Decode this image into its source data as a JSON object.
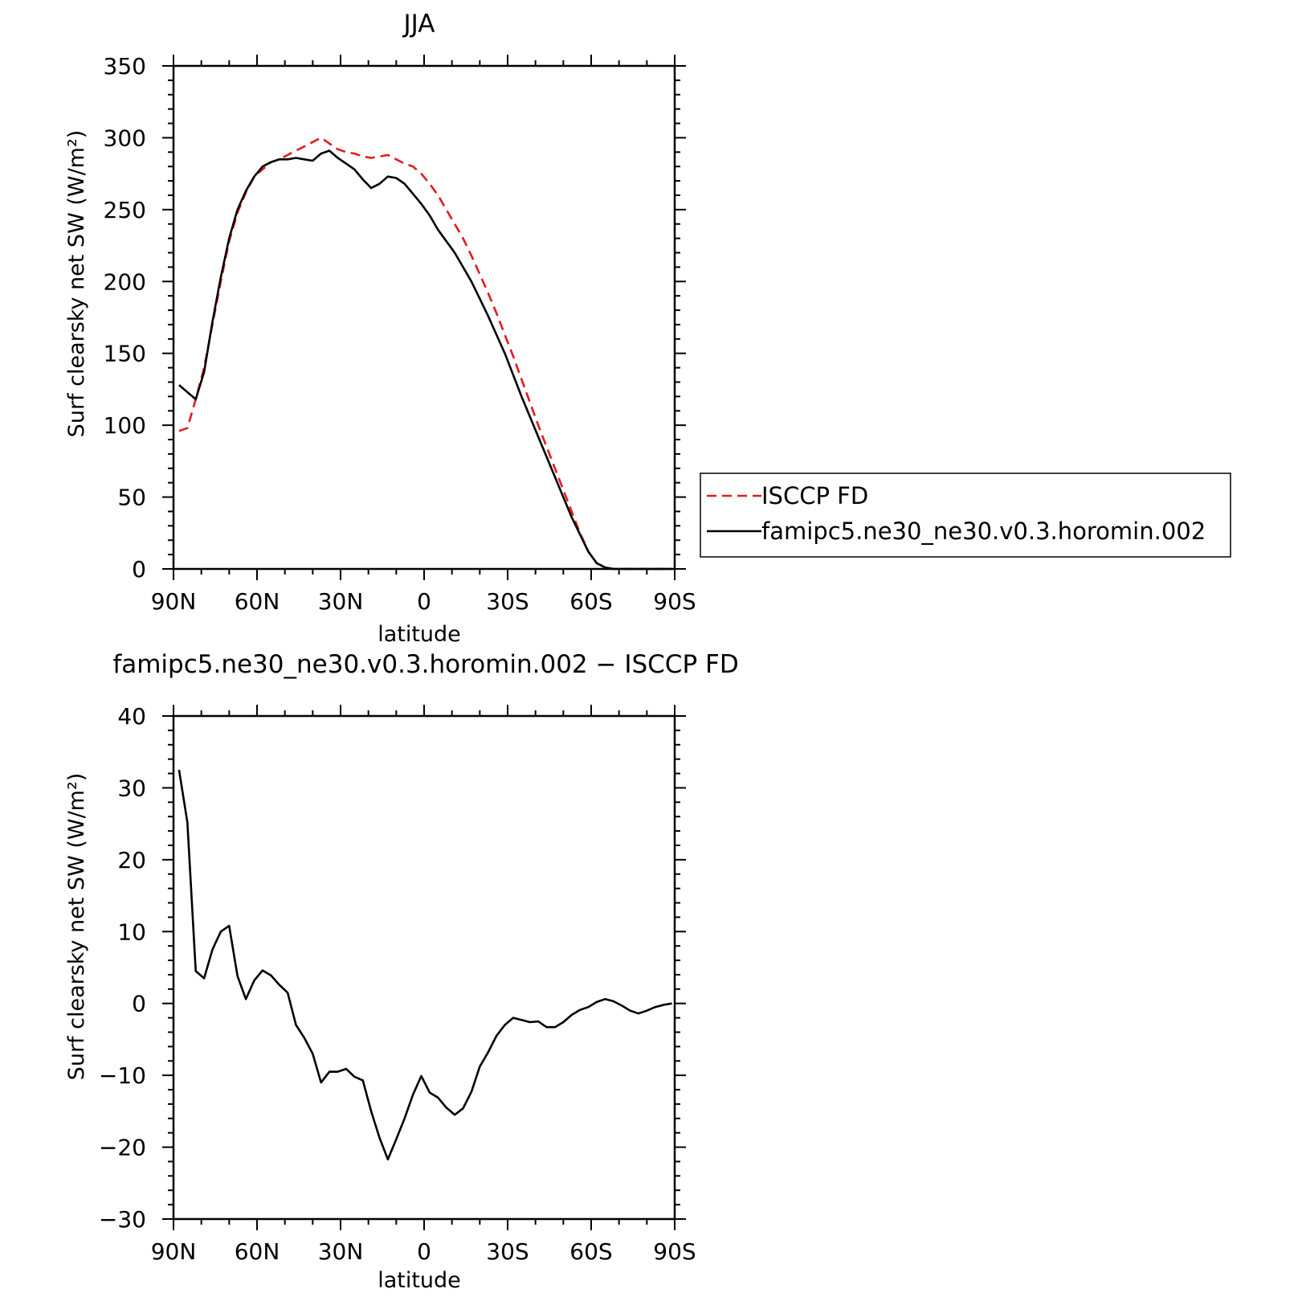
{
  "chart_data": [
    {
      "type": "line",
      "title": "JJA",
      "xlabel": "latitude",
      "ylabel": "Surf clearsky net SW (W/m²)",
      "xlim": [
        90,
        -90
      ],
      "ylim": [
        0,
        350
      ],
      "yticks": [
        0,
        50,
        100,
        150,
        200,
        250,
        300,
        350
      ],
      "xticks": [
        90,
        60,
        30,
        0,
        -30,
        -60,
        -90
      ],
      "xtick_labels": [
        "90N",
        "60N",
        "30N",
        "0",
        "30S",
        "60S",
        "90S"
      ],
      "grid": false,
      "legend": "right, outside",
      "series": [
        {
          "name": "ISCCP FD",
          "color": "#e41a1c",
          "style": "dashed",
          "x": [
            88,
            85,
            82,
            79,
            76,
            73,
            70,
            67,
            64,
            61,
            58,
            55,
            52,
            49,
            46,
            43,
            40,
            37,
            34,
            31,
            28,
            25,
            22,
            19,
            16,
            13,
            10,
            7,
            4,
            1,
            -2,
            -5,
            -8,
            -11,
            -14,
            -17,
            -20,
            -23,
            -26,
            -29,
            -32,
            -35,
            -38,
            -41,
            -44,
            -47,
            -50,
            -53,
            -56,
            -59,
            -62,
            -65,
            -68,
            -71,
            -74,
            -77,
            -80,
            -83,
            -86,
            -89
          ],
          "y": [
            96,
            98,
            118,
            140,
            170,
            200,
            228,
            248,
            262,
            273,
            278,
            283,
            285,
            288,
            291,
            294,
            297,
            300,
            296,
            292,
            290,
            289,
            287,
            286,
            287,
            288,
            285,
            282,
            280,
            275,
            268,
            260,
            250,
            240,
            230,
            218,
            205,
            192,
            178,
            163,
            148,
            132,
            116,
            100,
            85,
            70,
            55,
            40,
            25,
            12,
            4,
            1,
            0,
            0,
            0,
            0,
            0,
            0,
            0,
            0
          ]
        },
        {
          "name": "famipc5.ne30_ne30.v0.3.horomin.002",
          "color": "#000000",
          "style": "solid",
          "x": [
            88,
            85,
            82,
            79,
            76,
            73,
            70,
            67,
            64,
            61,
            58,
            55,
            52,
            49,
            46,
            43,
            40,
            37,
            34,
            31,
            28,
            25,
            22,
            19,
            16,
            13,
            10,
            7,
            4,
            1,
            -2,
            -5,
            -8,
            -11,
            -14,
            -17,
            -20,
            -23,
            -26,
            -29,
            -32,
            -35,
            -38,
            -41,
            -44,
            -47,
            -50,
            -53,
            -56,
            -59,
            -62,
            -65,
            -68,
            -71,
            -74,
            -77,
            -80,
            -83,
            -86,
            -89
          ],
          "y": [
            128,
            123,
            118,
            137,
            172,
            203,
            230,
            250,
            263,
            273,
            280,
            283,
            285,
            285,
            286,
            285,
            284,
            289,
            291,
            286,
            282,
            278,
            271,
            265,
            268,
            273,
            272,
            268,
            261,
            254,
            246,
            236,
            228,
            220,
            210,
            200,
            188,
            176,
            163,
            150,
            135,
            120,
            106,
            92,
            78,
            64,
            50,
            36,
            24,
            12,
            4,
            1,
            0,
            0,
            0,
            0,
            0,
            0,
            0,
            0
          ]
        }
      ]
    },
    {
      "type": "line",
      "title": "famipc5.ne30_ne30.v0.3.horomin.002 − ISCCP FD",
      "xlabel": "latitude",
      "ylabel": "Surf clearsky net SW (W/m²)",
      "xlim": [
        90,
        -90
      ],
      "ylim": [
        -30,
        40
      ],
      "yticks": [
        -30,
        -20,
        -10,
        0,
        10,
        20,
        30,
        40
      ],
      "ytick_labels": [
        "−30",
        "−20",
        "−10",
        "0",
        "10",
        "20",
        "30",
        "40"
      ],
      "xticks": [
        90,
        60,
        30,
        0,
        -30,
        -60,
        -90
      ],
      "xtick_labels": [
        "90N",
        "60N",
        "30N",
        "0",
        "30S",
        "60S",
        "90S"
      ],
      "grid": false,
      "series": [
        {
          "color": "#000000",
          "style": "solid",
          "x": [
            88,
            85,
            82,
            79,
            76,
            73,
            70,
            67,
            64,
            61,
            58,
            55,
            52,
            49,
            46,
            43,
            40,
            37,
            34,
            31,
            28,
            25,
            22,
            19,
            16,
            13,
            10,
            7,
            4,
            1,
            -2,
            -5,
            -8,
            -11,
            -14,
            -17,
            -20,
            -23,
            -26,
            -29,
            -32,
            -35,
            -38,
            -41,
            -44,
            -47,
            -50,
            -53,
            -56,
            -59,
            -62,
            -65,
            -68,
            -71,
            -74,
            -77,
            -80,
            -83,
            -86,
            -89
          ],
          "y": [
            32.5,
            25.2,
            4.5,
            3.5,
            7.5,
            10.0,
            10.8,
            3.8,
            0.6,
            3.2,
            4.6,
            3.9,
            2.6,
            1.5,
            -3.0,
            -4.8,
            -7.0,
            -11.0,
            -9.5,
            -9.5,
            -9.1,
            -10.2,
            -10.7,
            -15.0,
            -18.7,
            -21.7,
            -18.9,
            -16.0,
            -12.7,
            -10.1,
            -12.4,
            -13.1,
            -14.5,
            -15.5,
            -14.6,
            -12.3,
            -8.8,
            -6.8,
            -4.5,
            -3.0,
            -2.0,
            -2.3,
            -2.6,
            -2.5,
            -3.3,
            -3.3,
            -2.6,
            -1.6,
            -0.9,
            -0.5,
            0.2,
            0.6,
            0.3,
            -0.3,
            -1.0,
            -1.4,
            -1.0,
            -0.5,
            -0.2,
            0.0
          ]
        }
      ]
    }
  ]
}
